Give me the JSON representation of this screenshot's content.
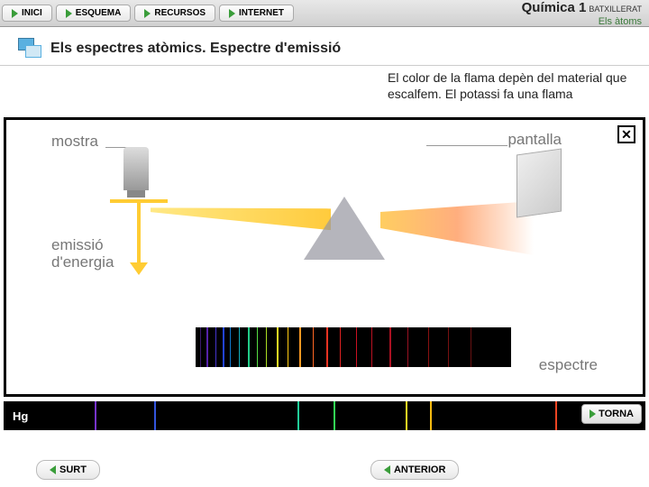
{
  "nav": {
    "inici": "INICI",
    "esquema": "ESQUEMA",
    "recursos": "RECURSOS",
    "internet": "INTERNET"
  },
  "header": {
    "subject": "Química 1",
    "level": "BATXILLERAT",
    "topic": "Els àtoms"
  },
  "section": {
    "title": "Els espectres atòmics. Espectre d'emissió"
  },
  "body": {
    "text": "El color de la flama depèn del material que escalfem. El potassi fa una flama"
  },
  "diagram": {
    "labels": {
      "mostra": "mostra",
      "pantalla": "pantalla",
      "emissio": "emissió\nd'energia",
      "espectre": "espectre"
    },
    "spectrum_lines": [
      {
        "pos": 5,
        "w": 1,
        "color": "#3a1a6a"
      },
      {
        "pos": 12,
        "w": 2,
        "color": "#5522aa"
      },
      {
        "pos": 22,
        "w": 1,
        "color": "#4433cc"
      },
      {
        "pos": 30,
        "w": 2,
        "color": "#2244dd"
      },
      {
        "pos": 38,
        "w": 1,
        "color": "#1177cc"
      },
      {
        "pos": 48,
        "w": 1,
        "color": "#11aabb"
      },
      {
        "pos": 58,
        "w": 2,
        "color": "#22cc88"
      },
      {
        "pos": 68,
        "w": 1,
        "color": "#55dd44"
      },
      {
        "pos": 78,
        "w": 1,
        "color": "#aadd22"
      },
      {
        "pos": 90,
        "w": 2,
        "color": "#eedd22"
      },
      {
        "pos": 102,
        "w": 1,
        "color": "#ffcc11"
      },
      {
        "pos": 115,
        "w": 2,
        "color": "#ff9922"
      },
      {
        "pos": 130,
        "w": 1,
        "color": "#ff6622"
      },
      {
        "pos": 145,
        "w": 2,
        "color": "#ee3322"
      },
      {
        "pos": 160,
        "w": 1,
        "color": "#dd2222"
      },
      {
        "pos": 178,
        "w": 1,
        "color": "#cc1122"
      },
      {
        "pos": 195,
        "w": 1,
        "color": "#bb1122"
      },
      {
        "pos": 215,
        "w": 2,
        "color": "#aa1122"
      },
      {
        "pos": 235,
        "w": 1,
        "color": "#991122"
      },
      {
        "pos": 258,
        "w": 1,
        "color": "#881111"
      },
      {
        "pos": 280,
        "w": 1,
        "color": "#771111"
      },
      {
        "pos": 305,
        "w": 1,
        "color": "#661111"
      }
    ]
  },
  "hg": {
    "label": "Hg",
    "lines": [
      {
        "pos": 8,
        "color": "#7733cc"
      },
      {
        "pos": 18,
        "color": "#3355dd"
      },
      {
        "pos": 42,
        "color": "#22cc99"
      },
      {
        "pos": 48,
        "color": "#33dd55"
      },
      {
        "pos": 60,
        "color": "#ffdd22"
      },
      {
        "pos": 64,
        "color": "#ffbb11"
      },
      {
        "pos": 85,
        "color": "#ee4422"
      }
    ]
  },
  "buttons": {
    "torna": "TORNA",
    "surt": "SURT",
    "anterior": "ANTERIOR"
  },
  "colors": {
    "green": "#3a9d3a",
    "strip": "#5aa84a"
  }
}
